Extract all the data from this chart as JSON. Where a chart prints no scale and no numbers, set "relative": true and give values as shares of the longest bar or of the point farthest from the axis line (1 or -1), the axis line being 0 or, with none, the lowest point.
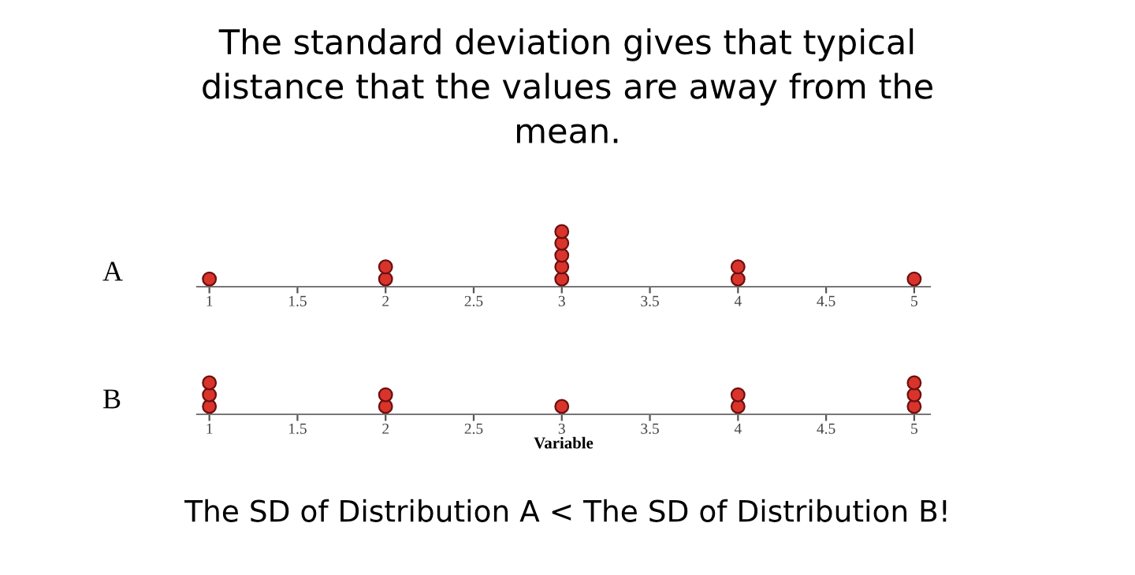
{
  "chart_data": [
    {
      "type": "scatter",
      "title": "The standard deviation gives that typical\ndistance that the values are away from the\nmean.",
      "subtitle": "A",
      "x": [
        1,
        2,
        2,
        3,
        3,
        3,
        3,
        3,
        4,
        4,
        5
      ],
      "values": [
        0.14,
        0.14,
        0.36,
        0.14,
        0.36,
        0.57,
        0.79,
        1,
        0.14,
        0.36,
        0.14
      ],
      "relative": true,
      "color": "#d9342b",
      "marker": "circle",
      "xlim": [
        0.93,
        5.09
      ],
      "xticks": [
        1,
        1.5,
        2,
        2.5,
        3,
        3.5,
        4,
        4.5,
        5
      ],
      "tick_labels": "x",
      "grid": false
    },
    {
      "type": "scatter",
      "subtitle": "B",
      "xlabel": "Variable",
      "annotations": [
        "The SD of Distribution A < The SD of Distribution B!"
      ],
      "x": [
        1,
        1,
        1,
        2,
        2,
        3,
        4,
        4,
        5,
        5,
        5
      ],
      "values": [
        0.25,
        0.62,
        1,
        0.25,
        0.62,
        0.25,
        0.25,
        0.62,
        0.25,
        0.62,
        1
      ],
      "relative": true,
      "color": "#d9342b",
      "marker": "circle",
      "xlim": [
        0.93,
        5.09
      ],
      "xticks": [
        1,
        1.5,
        2,
        2.5,
        3,
        3.5,
        4,
        4.5,
        5
      ],
      "tick_labels": "x",
      "grid": false
    }
  ]
}
